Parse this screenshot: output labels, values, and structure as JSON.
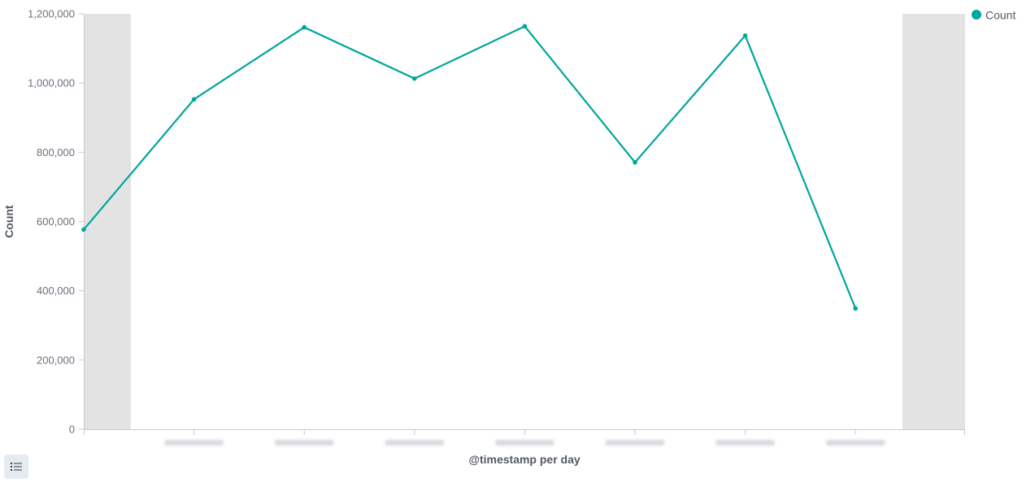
{
  "chart_data": {
    "type": "line",
    "ylabel": "Count",
    "xlabel": "@timestamp per day",
    "ylim": [
      0,
      1200000
    ],
    "y_ticks": [
      0,
      200000,
      400000,
      600000,
      800000,
      1000000,
      1200000
    ],
    "y_tick_labels": [
      "0",
      "200,000",
      "400,000",
      "600,000",
      "800,000",
      "1,000,000",
      "1,200,000"
    ],
    "x_tick_labels_blurred": true,
    "series": [
      {
        "name": "Count",
        "color": "#00A69B",
        "values": [
          577000,
          953000,
          1161000,
          1013000,
          1164000,
          771000,
          1137000,
          349000
        ]
      }
    ],
    "legend": {
      "position": "top-right",
      "items": [
        "Count"
      ]
    },
    "out_of_range_shading": true,
    "grid": false
  },
  "legend_toggle": {
    "icon": "list-icon"
  }
}
